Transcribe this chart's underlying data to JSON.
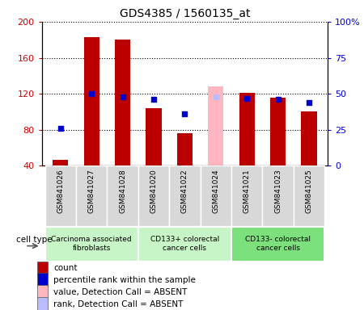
{
  "title": "GDS4385 / 1560135_at",
  "samples": [
    "GSM841026",
    "GSM841027",
    "GSM841028",
    "GSM841020",
    "GSM841022",
    "GSM841024",
    "GSM841021",
    "GSM841023",
    "GSM841025"
  ],
  "count_values": [
    47,
    183,
    180,
    104,
    76,
    null,
    121,
    116,
    100
  ],
  "count_absent": [
    null,
    null,
    null,
    null,
    null,
    128,
    null,
    null,
    null
  ],
  "rank_values": [
    26,
    50,
    48,
    46,
    36,
    null,
    47,
    46,
    44
  ],
  "rank_absent": [
    null,
    null,
    null,
    null,
    null,
    48,
    null,
    null,
    null
  ],
  "ylim_left": [
    40,
    200
  ],
  "ylim_right": [
    0,
    100
  ],
  "yticks_left": [
    40,
    80,
    120,
    160,
    200
  ],
  "yticks_right": [
    0,
    25,
    50,
    75,
    100
  ],
  "ytick_labels_left": [
    "40",
    "80",
    "120",
    "160",
    "200"
  ],
  "ytick_labels_right": [
    "0",
    "25",
    "50",
    "75",
    "100%"
  ],
  "group_configs": [
    {
      "indices": [
        0,
        1,
        2
      ],
      "label": "Carcinoma associated\nfibroblasts",
      "color": "#c8f5c8"
    },
    {
      "indices": [
        3,
        4,
        5
      ],
      "label": "CD133+ colorectal\ncancer cells",
      "color": "#c8f5c8"
    },
    {
      "indices": [
        6,
        7,
        8
      ],
      "label": "CD133- colorectal\ncancer cells",
      "color": "#7ce07c"
    }
  ],
  "bar_color_red": "#bb0000",
  "bar_color_pink": "#ffb6c1",
  "dot_color_blue": "#0000cc",
  "dot_color_lightblue": "#bbbbff",
  "bar_width": 0.5,
  "dot_size": 25,
  "legend_items": [
    {
      "color": "#bb0000",
      "label": "count"
    },
    {
      "color": "#0000cc",
      "label": "percentile rank within the sample"
    },
    {
      "color": "#ffb6c1",
      "label": "value, Detection Call = ABSENT"
    },
    {
      "color": "#bbbbff",
      "label": "rank, Detection Call = ABSENT"
    }
  ],
  "cell_type_label": "cell type",
  "tick_bg_color": "#d8d8d8",
  "plot_bg": "#ffffff",
  "fig_bg": "#ffffff"
}
